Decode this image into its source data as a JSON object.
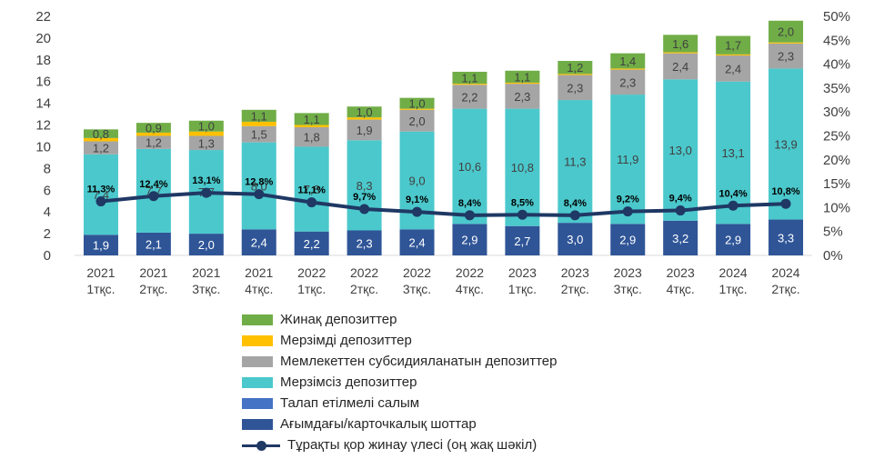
{
  "chart_data": {
    "type": "bar",
    "stacked": true,
    "categories": [
      [
        "2021",
        "1тқс."
      ],
      [
        "2021",
        "2тқс."
      ],
      [
        "2021",
        "3тқс."
      ],
      [
        "2021",
        "4тқс."
      ],
      [
        "2022",
        "1тқс."
      ],
      [
        "2022",
        "2тқс."
      ],
      [
        "2022",
        "3тқс."
      ],
      [
        "2022",
        "4тқс."
      ],
      [
        "2023",
        "1тқс."
      ],
      [
        "2023",
        "2тқс."
      ],
      [
        "2023",
        "3тқс."
      ],
      [
        "2023",
        "4тқс."
      ],
      [
        "2024",
        "1тқс."
      ],
      [
        "2024",
        "2тқс."
      ]
    ],
    "series": [
      {
        "name": "Ағымдағы/карточкалық шоттар",
        "color": "#2F5597",
        "label_color": "#ffffff",
        "values": [
          1.9,
          2.1,
          2.0,
          2.4,
          2.2,
          2.3,
          2.4,
          2.9,
          2.7,
          3.0,
          2.9,
          3.2,
          2.9,
          3.3
        ],
        "labels": [
          "1,9",
          "2,1",
          "2,0",
          "2,4",
          "2,2",
          "2,3",
          "2,4",
          "2,9",
          "2,7",
          "3,0",
          "2,9",
          "3,2",
          "2,9",
          "3,3"
        ]
      },
      {
        "name": "Талап етілмелі салым",
        "color": "#4472C4",
        "label_color": "#ffffff",
        "values": [
          0,
          0,
          0,
          0,
          0,
          0,
          0,
          0,
          0,
          0,
          0,
          0,
          0,
          0
        ],
        "labels": []
      },
      {
        "name": "Мерзімсіз депозиттер",
        "color": "#4BC8CC",
        "label_color": "#404040",
        "values": [
          7.4,
          7.7,
          7.7,
          8.0,
          7.8,
          8.3,
          9.0,
          10.6,
          10.8,
          11.3,
          11.9,
          13.0,
          13.1,
          13.9
        ],
        "labels": [
          "7,4",
          "7,7",
          "7,7",
          "8,0",
          "7,8",
          "8,3",
          "9,0",
          "10,6",
          "10,8",
          "11,3",
          "11,9",
          "13,0",
          "13,1",
          "13,9"
        ]
      },
      {
        "name": "Мемлекеттен субсидияланатын депозиттер",
        "color": "#A5A5A5",
        "label_color": "#404040",
        "values": [
          1.2,
          1.2,
          1.3,
          1.5,
          1.8,
          1.9,
          2.0,
          2.2,
          2.3,
          2.3,
          2.3,
          2.4,
          2.4,
          2.3
        ],
        "labels": [
          "1,2",
          "1,2",
          "1,3",
          "1,5",
          "1,8",
          "1,9",
          "2,0",
          "2,2",
          "2,3",
          "2,3",
          "2,3",
          "2,4",
          "2,4",
          "2,3"
        ]
      },
      {
        "name": "Мерзімді депозиттер",
        "color": "#FFC000",
        "label_color": "#404040",
        "values": [
          0.3,
          0.3,
          0.4,
          0.4,
          0.2,
          0.2,
          0.1,
          0.1,
          0.1,
          0.1,
          0.1,
          0.1,
          0.1,
          0.1
        ],
        "labels": []
      },
      {
        "name": "Жинақ депозиттер",
        "color": "#70AD47",
        "label_color": "#404040",
        "values": [
          0.8,
          0.9,
          1.0,
          1.1,
          1.1,
          1.0,
          1.0,
          1.1,
          1.1,
          1.2,
          1.4,
          1.6,
          1.7,
          2.0
        ],
        "labels": [
          "0,8",
          "0,9",
          "1,0",
          "1,1",
          "1,1",
          "1,0",
          "1,0",
          "1,1",
          "1,1",
          "1,2",
          "1,4",
          "1,6",
          "1,7",
          "2,0"
        ]
      }
    ],
    "line": {
      "name": "Тұрақты қор жинау үлесі (оң жақ шәкіл)",
      "color": "#1F3864",
      "axis": "right",
      "values": [
        11.3,
        12.4,
        13.1,
        12.8,
        11.1,
        9.7,
        9.1,
        8.4,
        8.5,
        8.4,
        9.2,
        9.4,
        10.4,
        10.8
      ],
      "labels": [
        "11,3%",
        "12,4%",
        "13,1%",
        "12,8%",
        "11,1%",
        "9,7%",
        "9,1%",
        "8,4%",
        "8,5%",
        "8,4%",
        "9,2%",
        "9,4%",
        "10,4%",
        "10,8%"
      ]
    },
    "y_left": {
      "min": 0,
      "max": 22,
      "ticks": [
        "0",
        "2",
        "4",
        "6",
        "8",
        "10",
        "12",
        "14",
        "16",
        "18",
        "20",
        "22"
      ]
    },
    "y_right": {
      "min": 0,
      "max": 50,
      "ticks": [
        "0%",
        "5%",
        "10%",
        "15%",
        "20%",
        "25%",
        "30%",
        "35%",
        "40%",
        "45%",
        "50%"
      ]
    },
    "grid": false,
    "legend_position": "bottom",
    "legend_order": [
      "Жинақ депозиттер",
      "Мерзімді депозиттер",
      "Мемлекеттен субсидияланатын депозиттер",
      "Мерзімсіз депозиттер",
      "Талап етілмелі салым",
      "Ағымдағы/карточкалық шоттар",
      "Тұрақты қор жинау үлесі (оң жақ шәкіл)"
    ]
  }
}
